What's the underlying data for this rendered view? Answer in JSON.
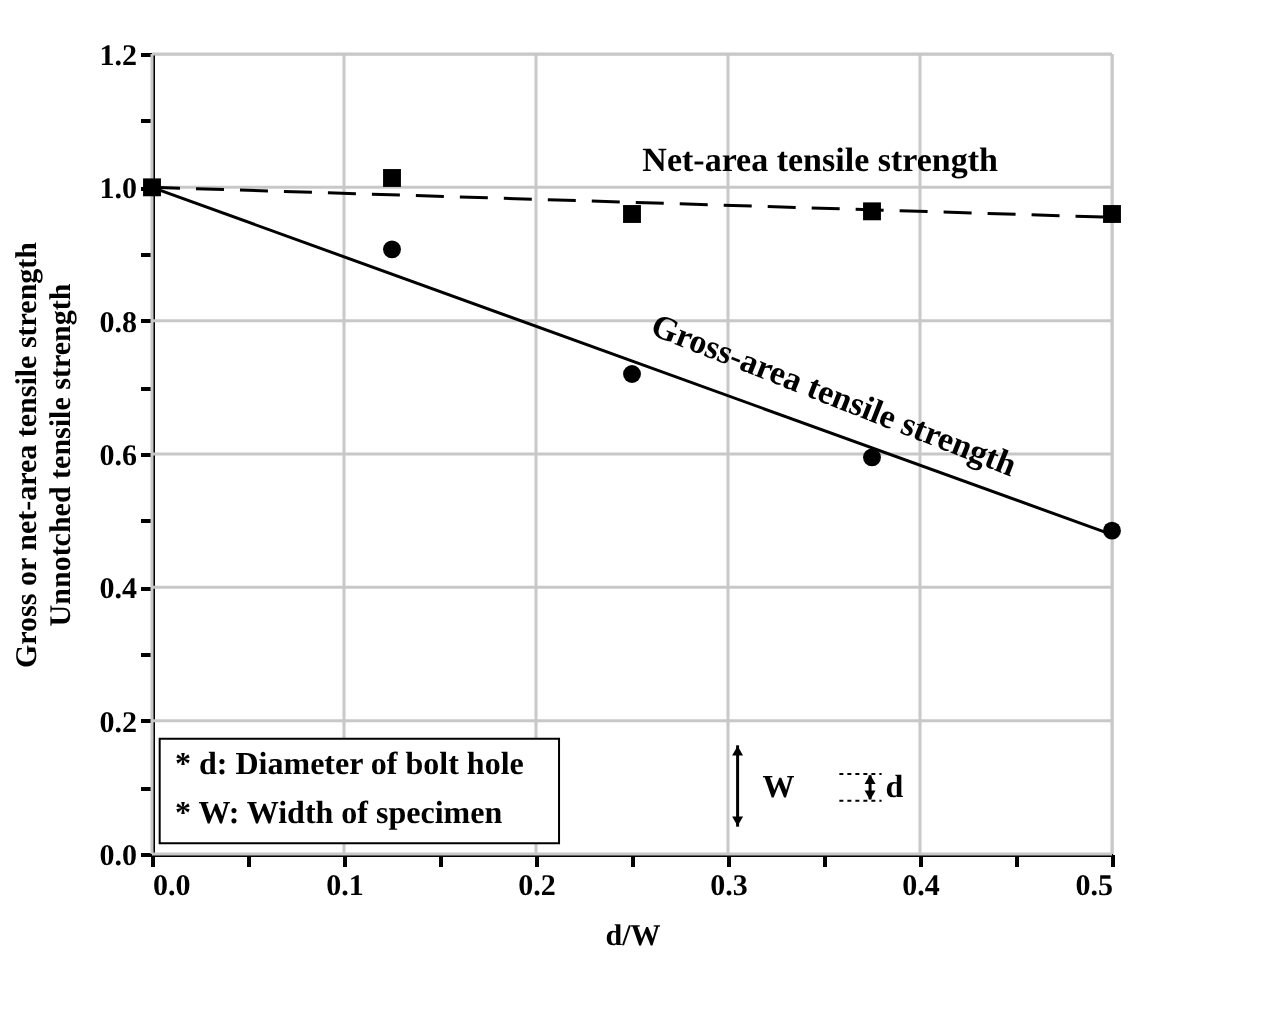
{
  "chart_data": {
    "type": "scatter",
    "xlabel": "d/W",
    "ylabel": "Gross or net-area tensile strength\nUnnotched tensile strength",
    "xlim": [
      0,
      0.5
    ],
    "xticks": [
      {
        "value": 0,
        "label": "0.0"
      },
      {
        "value": 0.05,
        "label": null
      },
      {
        "value": 0.1,
        "label": "0.1"
      },
      {
        "value": 0.15,
        "label": null
      },
      {
        "value": 0.2,
        "label": "0.2"
      },
      {
        "value": 0.25,
        "label": null
      },
      {
        "value": 0.3,
        "label": "0.3"
      },
      {
        "value": 0.35,
        "label": null
      },
      {
        "value": 0.4,
        "label": "0.4"
      },
      {
        "value": 0.45,
        "label": null
      },
      {
        "value": 0.5,
        "label": "0.5"
      }
    ],
    "ylim": [
      0,
      1.2
    ],
    "yticks": [
      {
        "value": 0,
        "label": "0.0"
      },
      {
        "value": 0.1,
        "label": null
      },
      {
        "value": 0.2,
        "label": "0.2"
      },
      {
        "value": 0.3,
        "label": null
      },
      {
        "value": 0.4,
        "label": "0.4"
      },
      {
        "value": 0.5,
        "label": null
      },
      {
        "value": 0.6,
        "label": "0.6"
      },
      {
        "value": 0.7,
        "label": null
      },
      {
        "value": 0.8,
        "label": "0.8"
      },
      {
        "value": 0.9,
        "label": null
      },
      {
        "value": 1.0,
        "label": "1.0"
      },
      {
        "value": 1.1,
        "label": null
      },
      {
        "value": 1.2,
        "label": "1.2"
      }
    ],
    "grid": true,
    "series": [
      {
        "marker": "square",
        "color": "#000000",
        "x": [
          0,
          0.125,
          0.25,
          0.375,
          0.5
        ],
        "values": [
          1.0,
          1.014,
          0.96,
          0.964,
          0.96
        ]
      },
      {
        "marker": "circle",
        "color": "#000000",
        "x": [
          0.125,
          0.25,
          0.375,
          0.5
        ],
        "values": [
          0.907,
          0.72,
          0.595,
          0.485
        ]
      },
      {
        "type": "line",
        "line_style": "dashed",
        "marker": "none",
        "color": "#000000",
        "x": [
          0,
          0.5
        ],
        "values": [
          1.0,
          0.955
        ]
      },
      {
        "type": "line",
        "line_style": "solid",
        "marker": "none",
        "color": "#000000",
        "x": [
          0,
          0.5
        ],
        "values": [
          1.0,
          0.479
        ]
      }
    ],
    "annotations": [
      "Net-area tensile strength",
      "Gross-area tensile strength",
      "* d: Diameter of bolt hole",
      "* W: Width of specimen",
      "W",
      "d"
    ]
  }
}
